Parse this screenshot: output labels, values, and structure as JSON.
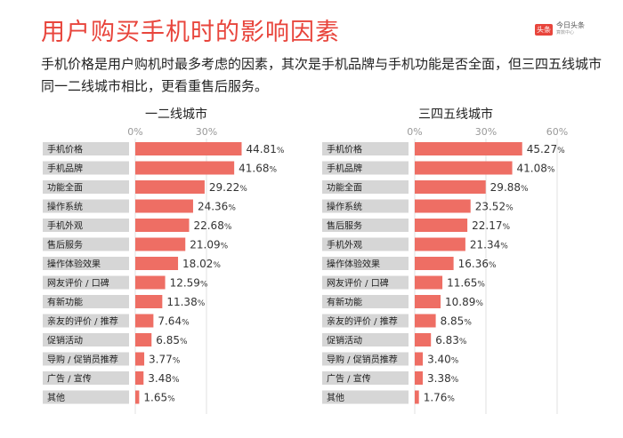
{
  "title": "用户购买手机时的影响因素",
  "logo": {
    "badge": "头条",
    "main": "今日头条",
    "sub": "算数中心"
  },
  "subtitle": "手机价格是用户购机时最多考虑的因素，其次是手机品牌与手机功能是否全面，但三四五线城市同一二线城市相比，更看重售后服务。",
  "colors": {
    "accent": "#e8453c",
    "bar": "#ee6e64",
    "label_bg": "#d6d6d6"
  },
  "chart_data": [
    {
      "type": "bar",
      "orientation": "horizontal",
      "title": "一二线城市",
      "ticks": [
        "0%",
        "30%"
      ],
      "tick_values": [
        0,
        30
      ],
      "xlim": [
        0,
        60
      ],
      "categories": [
        "手机价格",
        "手机品牌",
        "功能全面",
        "操作系统",
        "手机外观",
        "售后服务",
        "操作体验效果",
        "网友评价 / 口碑",
        "有新功能",
        "亲友的评价 / 推荐",
        "促销活动",
        "导购 / 促销员推荐",
        "广告 / 宣传",
        "其他"
      ],
      "values": [
        44.81,
        41.68,
        29.22,
        24.36,
        22.68,
        21.09,
        18.02,
        12.59,
        11.38,
        7.64,
        6.85,
        3.77,
        3.48,
        1.65
      ]
    },
    {
      "type": "bar",
      "orientation": "horizontal",
      "title": "三四五线城市",
      "ticks": [
        "0%",
        "30%",
        "60%"
      ],
      "tick_values": [
        0,
        30,
        60
      ],
      "xlim": [
        0,
        60
      ],
      "categories": [
        "手机价格",
        "手机品牌",
        "功能全面",
        "操作系统",
        "售后服务",
        "手机外观",
        "操作体验效果",
        "网友评价 / 口碑",
        "有新功能",
        "亲友的评价 / 推荐",
        "促销活动",
        "导购 / 促销员推荐",
        "广告 / 宣传",
        "其他"
      ],
      "values": [
        45.27,
        41.08,
        29.88,
        23.52,
        22.17,
        21.34,
        16.36,
        11.65,
        10.89,
        8.85,
        6.83,
        3.4,
        3.38,
        1.76
      ]
    }
  ]
}
